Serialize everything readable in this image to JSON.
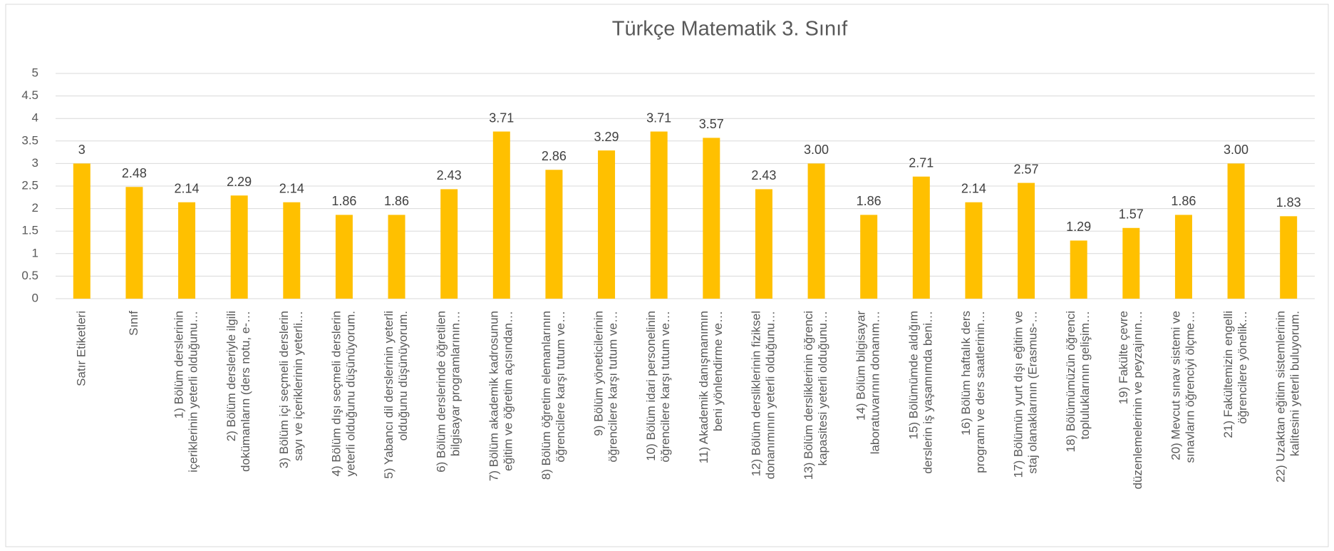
{
  "chart_data": {
    "type": "bar",
    "title": "Türkçe Matematik 3. Sınıf",
    "categories": [
      [
        "Satır Etiketleri"
      ],
      [
        "Sınıf"
      ],
      [
        "1) Bölüm derslerinin",
        "içeriklerinin yeterli olduğunu…"
      ],
      [
        "2) Bölüm dersleriyle ilgili",
        "dokümanların (ders notu, e-…"
      ],
      [
        "3) Bölüm içi seçmeli derslerin",
        "sayı ve içeriklerinin yeterli…"
      ],
      [
        "4) Bölüm dışı seçmeli derslerin",
        "yeterli olduğunu düşünüyorum."
      ],
      [
        "5) Yabancı dil derslerinin yeterli",
        "olduğunu düşünüyorum."
      ],
      [
        "6) Bölüm derslerinde öğretilen",
        "bilgisayar programlarının…"
      ],
      [
        "7) Bölüm akademik kadrosunun",
        "eğitim ve öğretim açısından…"
      ],
      [
        "8) Bölüm öğretim elemanlarının",
        "öğrencilere karşı tutum ve…"
      ],
      [
        "9) Bölüm yöneticilerinin",
        "öğrencilere karşı tutum ve…"
      ],
      [
        "10) Bölüm idari personelinin",
        "öğrencilere karşı tutum ve…"
      ],
      [
        "11) Akademik danışmanımın",
        "beni yönlendirme ve…"
      ],
      [
        "12) Bölüm dersliklerinin fiziksel",
        "donanımının yeterli olduğunu…"
      ],
      [
        "13) Bölüm dersliklerinin öğrenci",
        "kapasitesi yeterli olduğunu…"
      ],
      [
        "14) Bölüm bilgisayar",
        "laboratuvarının donanım…"
      ],
      [
        "15) Bölümümde aldığım",
        "derslerin iş yaşamımda beni…"
      ],
      [
        "16) Bölüm haftalık ders",
        "programı ve ders saatlerinin…"
      ],
      [
        "17) Bölümün yurt dışı eğitim ve",
        "staj olanaklarının (Erasmus-…"
      ],
      [
        "18) Bölümümüzün öğrenci",
        "topluluklarının gelişim…"
      ],
      [
        "19) Fakülte çevre",
        "düzenlemelerinin ve peyzajının…"
      ],
      [
        "20) Mevcut sınav sistemi ve",
        "sınavların öğrenciyi ölçme…"
      ],
      [
        "21) Fakültemizin engelli",
        "öğrencilere yönelik…"
      ],
      [
        "22) Uzaktan eğitim sistemlerinin",
        "kalitesini yeterli buluyorum."
      ]
    ],
    "values": [
      3,
      2.48,
      2.14,
      2.29,
      2.14,
      1.86,
      1.86,
      2.43,
      3.71,
      2.86,
      3.29,
      3.71,
      3.57,
      2.43,
      3.0,
      1.86,
      2.71,
      2.14,
      2.57,
      1.29,
      1.57,
      1.86,
      3.0,
      1.83
    ],
    "value_labels": [
      "3",
      "2.48",
      "2.14",
      "2.29",
      "2.14",
      "1.86",
      "1.86",
      "2.43",
      "3.71",
      "2.86",
      "3.29",
      "3.71",
      "3.57",
      "2.43",
      "3.00",
      "1.86",
      "2.71",
      "2.14",
      "2.57",
      "1.29",
      "1.57",
      "1.86",
      "3.00",
      "1.83"
    ],
    "color": "#ffc000",
    "ylim": [
      0,
      5
    ],
    "yticks": [
      0,
      0.5,
      1,
      1.5,
      2,
      2.5,
      3,
      3.5,
      4,
      4.5,
      5
    ],
    "grid": true
  }
}
